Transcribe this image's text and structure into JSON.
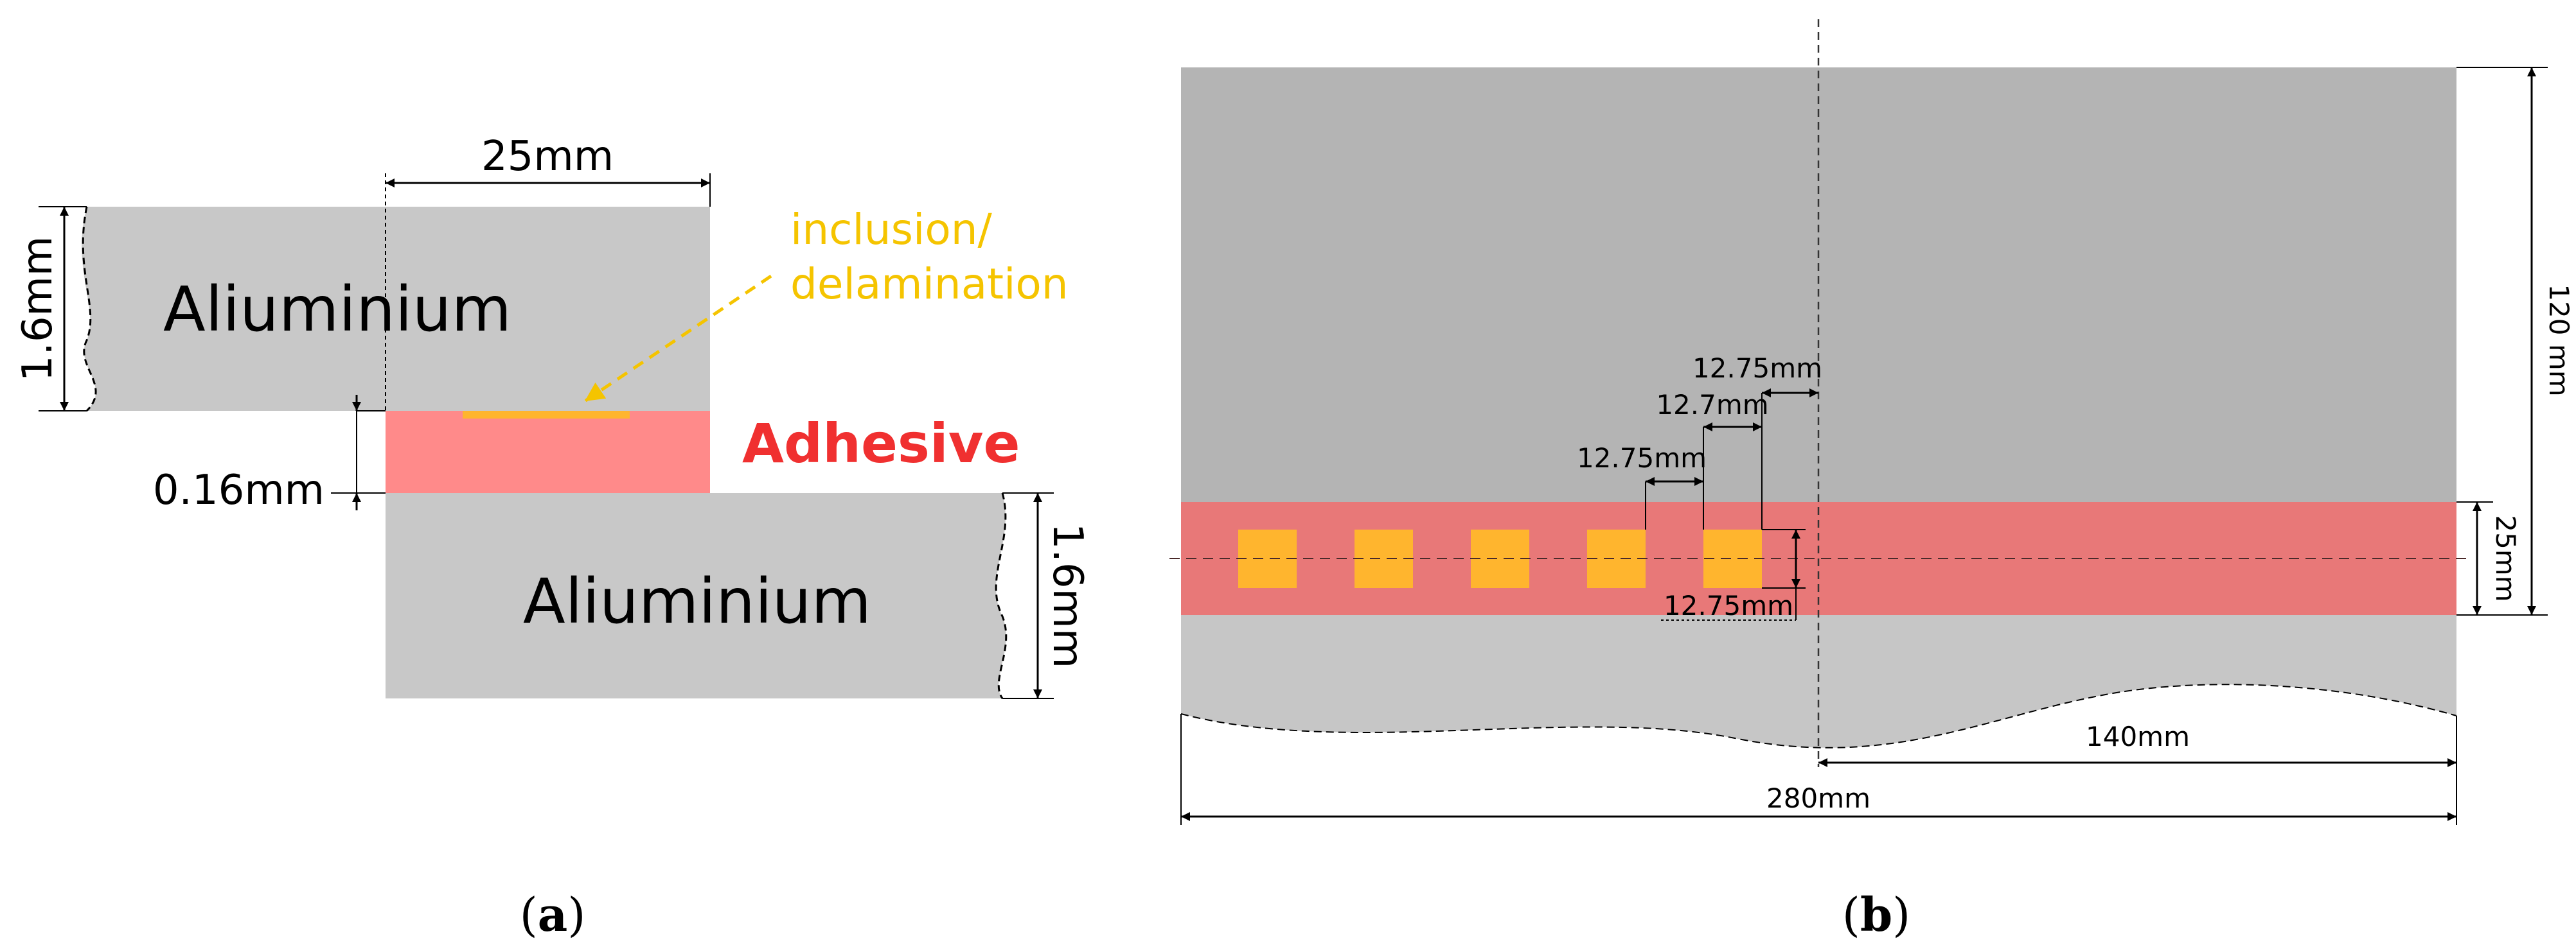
{
  "panel_a": {
    "top_plate_label": "Aliuminium",
    "bottom_plate_label": "Aliuminium",
    "adhesive_label": "Adhesive",
    "defect_label_line1": "inclusion/",
    "defect_label_line2": "delamination",
    "overlap_dim": "25mm",
    "top_thickness_dim": "1.6mm",
    "bottom_thickness_dim": "1.6mm",
    "adhesive_thickness_dim": "0.16mm",
    "caption_open": "(",
    "caption_letter": "a",
    "caption_close": ")"
  },
  "panel_b": {
    "height_dim": "120 mm",
    "adhesive_width_dim": "25mm",
    "half_length_dim": "140mm",
    "total_length_dim": "280mm",
    "spacing_dim_1": "12.75mm",
    "spacing_dim_2": "12.7mm",
    "spacing_dim_3": "12.75mm",
    "defect_size_dim": "12.75mm",
    "defect_count": 5,
    "caption_open": "(",
    "caption_letter": "b",
    "caption_close": ")"
  },
  "colors": {
    "aluminium_a": "#c8c8c8",
    "aluminium_b_top": "#b4b4b4",
    "aluminium_b_bottom": "#c6c6c6",
    "adhesive_a": "#ff8a8a",
    "adhesive_b": "#e87878",
    "adhesive_text": "#f03030",
    "defect": "#ffb52e",
    "defect_label": "#f5c400",
    "line": "#000000"
  }
}
